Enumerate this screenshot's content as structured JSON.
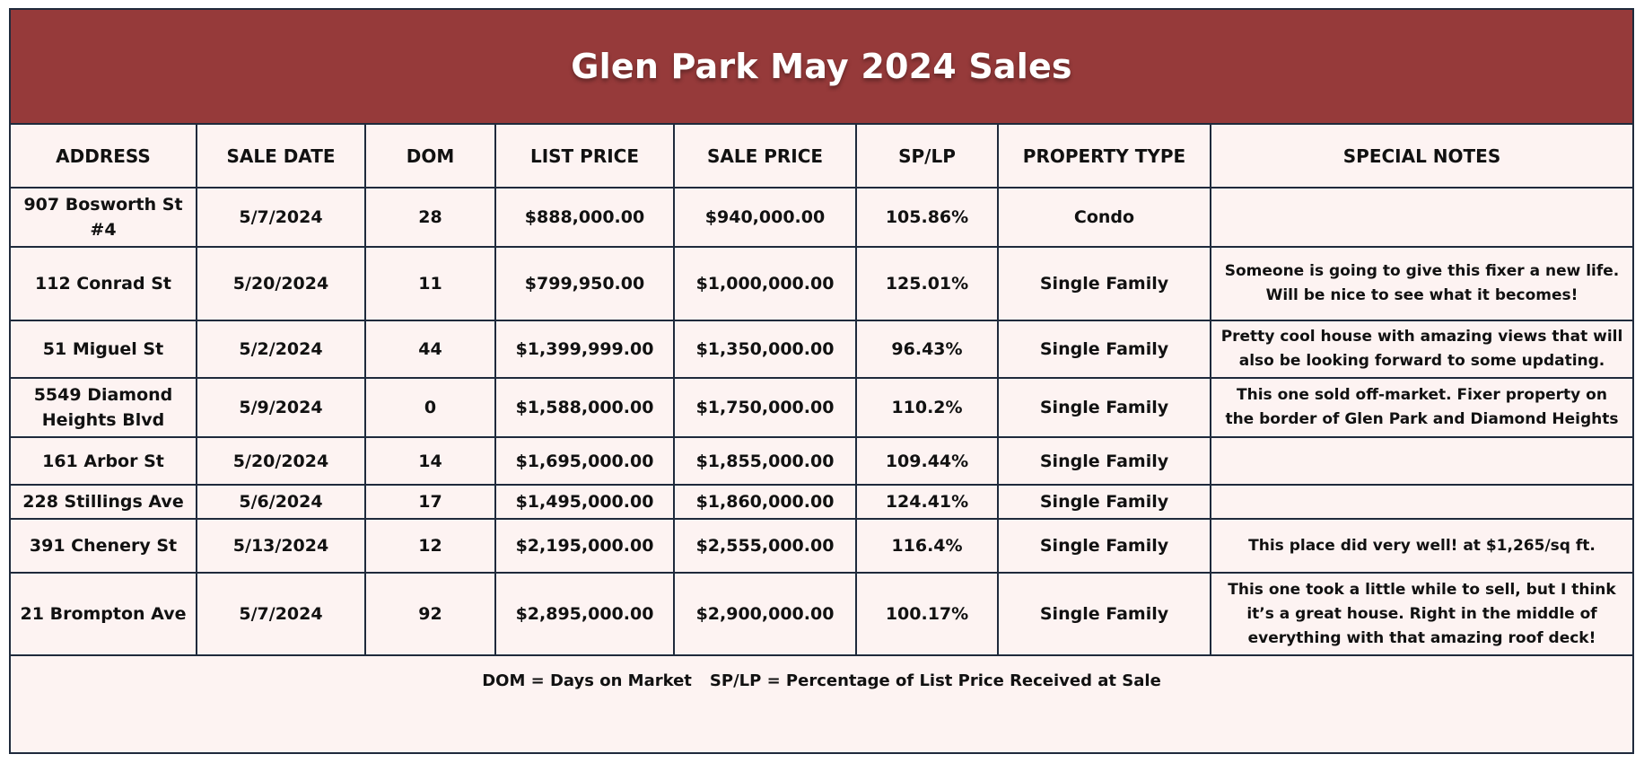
{
  "title": "Glen Park May 2024 Sales",
  "columns": [
    "ADDRESS",
    "SALE DATE",
    "DOM",
    "LIST PRICE",
    "SALE PRICE",
    "SP/LP",
    "PROPERTY TYPE",
    "SPECIAL NOTES"
  ],
  "rows": [
    {
      "address": "907 Bosworth St #4",
      "sale_date": "5/7/2024",
      "dom": "28",
      "list_price": "$888,000.00",
      "sale_price": "$940,000.00",
      "sp_lp": "105.86%",
      "property_type": "Condo",
      "notes": ""
    },
    {
      "address": "112 Conrad St",
      "sale_date": "5/20/2024",
      "dom": "11",
      "list_price": "$799,950.00",
      "sale_price": "$1,000,000.00",
      "sp_lp": "125.01%",
      "property_type": "Single Family",
      "notes": "Someone is going to give this fixer a new life. Will be nice to see what it becomes!"
    },
    {
      "address": "51 Miguel St",
      "sale_date": "5/2/2024",
      "dom": "44",
      "list_price": "$1,399,999.00",
      "sale_price": "$1,350,000.00",
      "sp_lp": "96.43%",
      "property_type": "Single Family",
      "notes": "Pretty cool house with amazing views that will also be looking forward to some updating."
    },
    {
      "address": "5549 Diamond Heights Blvd",
      "sale_date": "5/9/2024",
      "dom": "0",
      "list_price": "$1,588,000.00",
      "sale_price": "$1,750,000.00",
      "sp_lp": "110.2%",
      "property_type": "Single Family",
      "notes": "This one sold off-market. Fixer property on the border of Glen Park and Diamond Heights"
    },
    {
      "address": "161 Arbor St",
      "sale_date": "5/20/2024",
      "dom": "14",
      "list_price": "$1,695,000.00",
      "sale_price": "$1,855,000.00",
      "sp_lp": "109.44%",
      "property_type": "Single Family",
      "notes": ""
    },
    {
      "address": "228 Stillings Ave",
      "sale_date": "5/6/2024",
      "dom": "17",
      "list_price": "$1,495,000.00",
      "sale_price": "$1,860,000.00",
      "sp_lp": "124.41%",
      "property_type": "Single Family",
      "notes": ""
    },
    {
      "address": "391 Chenery St",
      "sale_date": "5/13/2024",
      "dom": "12",
      "list_price": "$2,195,000.00",
      "sale_price": "$2,555,000.00",
      "sp_lp": "116.4%",
      "property_type": "Single Family",
      "notes": "This place did very well! at $1,265/sq ft."
    },
    {
      "address": "21 Brompton Ave",
      "sale_date": "5/7/2024",
      "dom": "92",
      "list_price": "$2,895,000.00",
      "sale_price": "$2,900,000.00",
      "sp_lp": "100.17%",
      "property_type": "Single Family",
      "notes": "This one took a little while to sell, but I think it’s a great house. Right in the middle of everything with that amazing roof deck!"
    }
  ],
  "footer": {
    "dom_legend": "DOM = Days on Market",
    "splp_legend": "SP/LP = Percentage of List Price Received at Sale"
  },
  "colors": {
    "title_bar": "#963a3a",
    "background": "#fdf3f2",
    "border": "#1f2a3c"
  }
}
